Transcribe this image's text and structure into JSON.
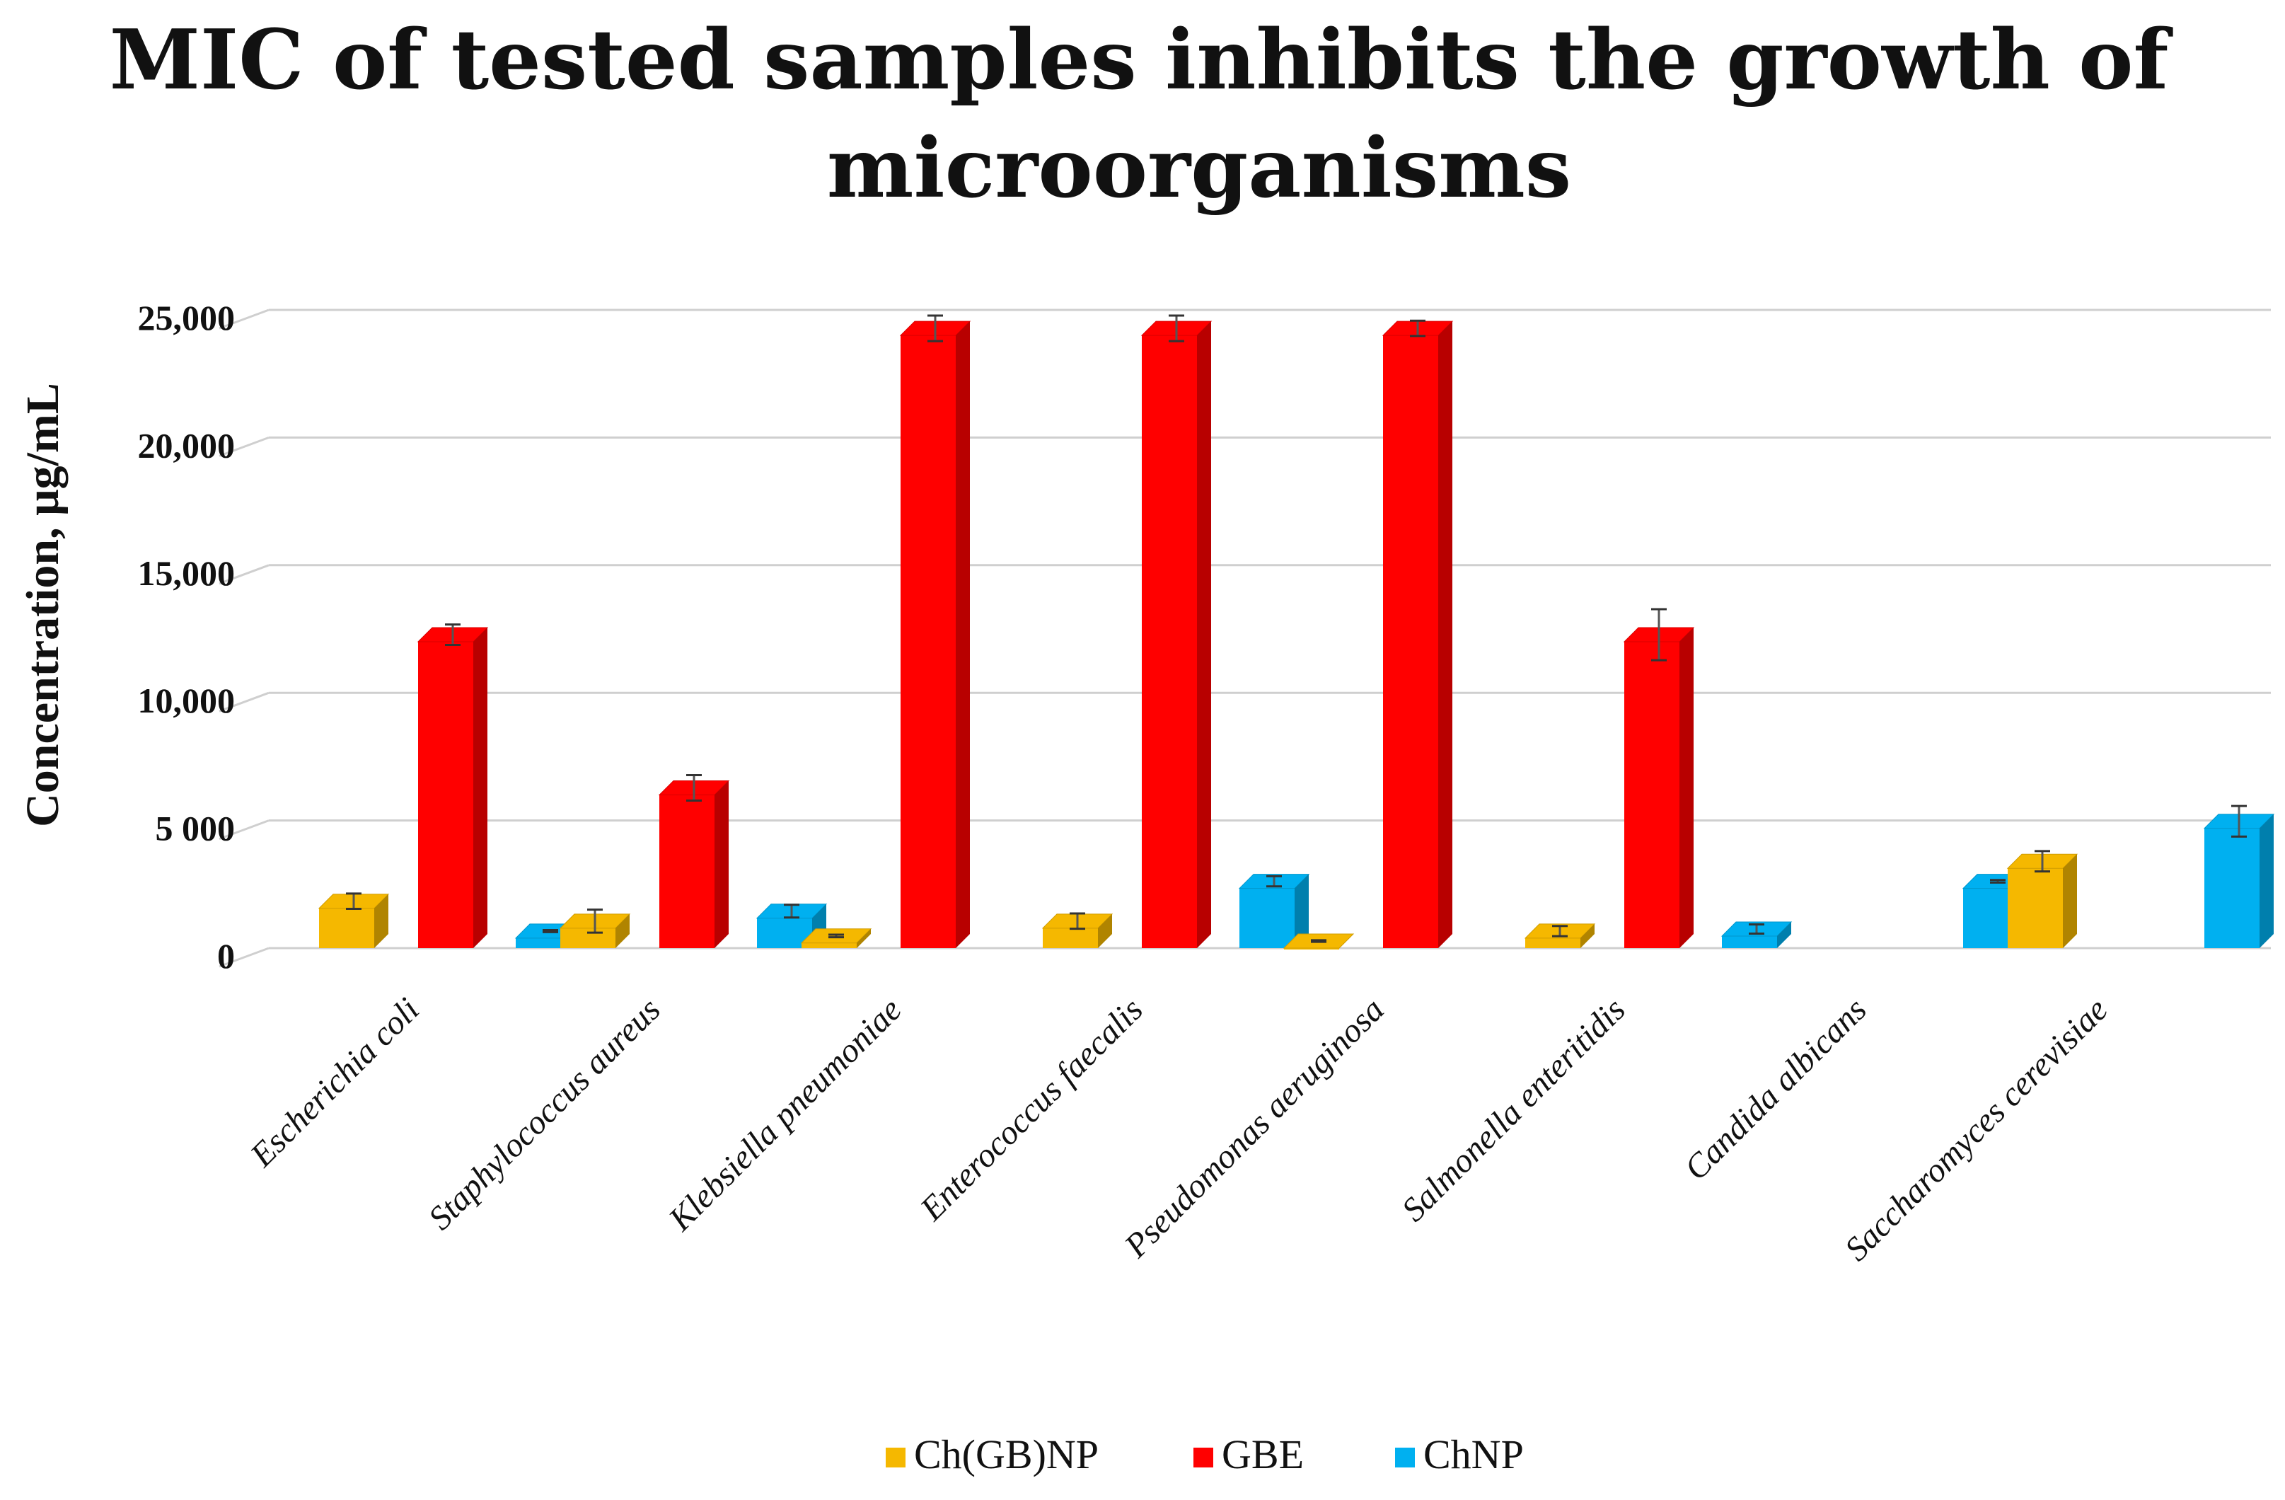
{
  "chart_data": {
    "type": "bar",
    "title_lines": [
      "MIC of tested samples inhibits the growth of",
      "microorganisms"
    ],
    "title": "MIC of tested samples inhibits the growth of microorganisms",
    "xlabel": "",
    "ylabel": "Concentration, μg/mL",
    "ylim": [
      0,
      25000
    ],
    "y_ticks": [
      0,
      5000,
      10000,
      15000,
      20000,
      25000
    ],
    "y_tick_labels": [
      "0",
      "5 000",
      "10,000",
      "15,000",
      "20,000",
      "25,000"
    ],
    "grid": true,
    "legend_position": "bottom",
    "categories": [
      "Escherichia coli",
      "Staphylococcus aureus",
      "Klebsiella pneumoniae",
      "Enterococcus faecalis",
      "Pseudomonas aeruginosa",
      "Salmonella enteritidis",
      "Candida albicans",
      "Saccharomyces cerevisiae"
    ],
    "series": [
      {
        "name": "Ch(GB)NP",
        "color": "#f5b800",
        "values": [
          1560,
          780,
          200,
          780,
          0,
          390,
          null,
          3125
        ],
        "errors": [
          300,
          450,
          50,
          300,
          30,
          200,
          null,
          400
        ]
      },
      {
        "name": "GBE",
        "color": "#ff0000",
        "values": [
          12000,
          6000,
          24000,
          24000,
          24000,
          12000,
          null,
          null
        ],
        "errors": [
          400,
          500,
          500,
          500,
          300,
          1000,
          null,
          null
        ]
      },
      {
        "name": "ChNP",
        "color": "#00b0f0",
        "values": [
          390,
          1170,
          null,
          2340,
          null,
          470,
          2340,
          4690
        ],
        "errors": [
          40,
          250,
          null,
          200,
          null,
          180,
          50,
          600
        ]
      }
    ]
  }
}
